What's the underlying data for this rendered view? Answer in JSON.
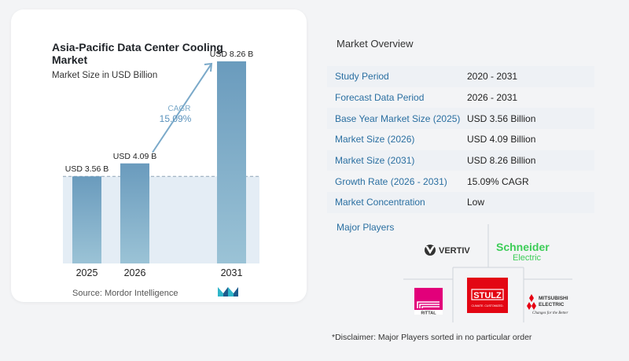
{
  "chart_data": {
    "type": "bar",
    "title": "Asia-Pacific Data Center Cooling Market",
    "subtitle": "Market Size in USD Billion",
    "categories": [
      "2025",
      "2026",
      "2031"
    ],
    "values": [
      3.56,
      4.09,
      8.26
    ],
    "value_labels": [
      "USD 3.56 B",
      "USD 4.09 B",
      "USD 8.26 B"
    ],
    "ylim": [
      0,
      9
    ],
    "bar_color": "#6a9bbd",
    "bar_color_light": "#9bc3d6",
    "annotation": {
      "label": "CAGR",
      "value": "15.09%"
    },
    "legend": "none",
    "grid": false
  },
  "source": "Source:  Mordor Intelligence",
  "overview": {
    "title": "Market Overview",
    "rows": [
      {
        "label": "Study Period",
        "value": "2020 - 2031"
      },
      {
        "label": "Forecast Data Period",
        "value": "2026 - 2031"
      },
      {
        "label": "Base Year Market Size (2025)",
        "value": "USD 3.56 Billion"
      },
      {
        "label": "Market Size (2026)",
        "value": "USD 4.09 Billion"
      },
      {
        "label": "Market Size (2031)",
        "value": "USD 8.26 Billion"
      },
      {
        "label": "Growth Rate (2026 - 2031)",
        "value": "15.09% CAGR"
      },
      {
        "label": "Market Concentration",
        "value": "Low"
      }
    ]
  },
  "players": {
    "title": "Major Players",
    "logos": [
      {
        "name": "VERTIV",
        "icon": "vertiv-logo"
      },
      {
        "name": "Schneider Electric",
        "line1": "Schneider",
        "line2": "Electric",
        "color": "#3dcd58",
        "icon": "schneider-electric-logo"
      },
      {
        "name": "RITTAL",
        "icon": "rittal-logo",
        "color": "#e2007a"
      },
      {
        "name": "STULZ",
        "sub": "CLIMATE. CUSTOMIZED.",
        "icon": "stulz-logo",
        "color": "#e30613"
      },
      {
        "name": "MITSUBISHI ELECTRIC",
        "line1": "MITSUBISHI",
        "line2": "ELECTRIC",
        "tagline": "Changes for the Better",
        "icon": "mitsubishi-electric-logo",
        "color": "#e60012"
      }
    ]
  },
  "disclaimer": "*Disclaimer: Major Players sorted in no particular order"
}
